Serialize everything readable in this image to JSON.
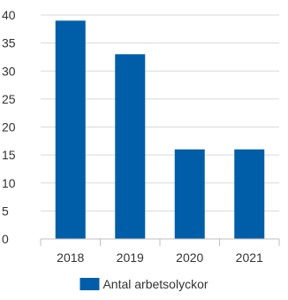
{
  "chart_data": {
    "type": "bar",
    "categories": [
      "2018",
      "2019",
      "2020",
      "2021"
    ],
    "series": [
      {
        "name": "Antal arbetsolyckor",
        "values": [
          39,
          33,
          16,
          16
        ],
        "color": "#005ea8"
      }
    ],
    "ylim": [
      0,
      40
    ],
    "yticks": [
      0,
      5,
      10,
      15,
      20,
      25,
      30,
      35,
      40
    ],
    "grid": true,
    "legend_position": "bottom-center",
    "colors": {
      "bar": "#005ea8",
      "grid": "#d9d9d9",
      "axis": "#bfbfbf",
      "text": "#333333"
    }
  }
}
